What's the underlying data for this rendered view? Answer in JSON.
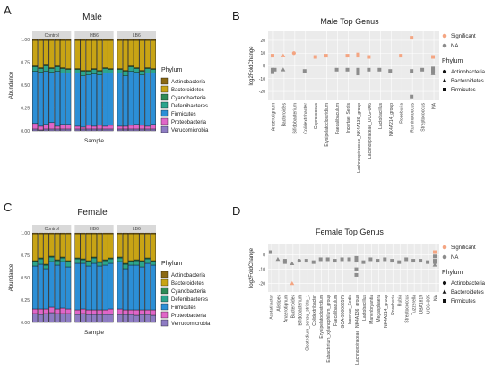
{
  "colors": {
    "Actinobacteria": "#8B6914",
    "Bacteroidetes": "#C8A415",
    "Cyanobacteria": "#2E8B57",
    "Deferribacteres": "#2CA58D",
    "Firmicutes": "#2C8FD6",
    "Proteobacteria": "#E066C8",
    "Verrucomicrobia": "#8E7CC3",
    "significant": "#F4A582",
    "na": "#8C8C8C"
  },
  "chart_data": [
    {
      "id": "A",
      "type": "bar",
      "title": "Male",
      "xlabel": "Sample",
      "ylabel": "Abundance",
      "ylim": [
        0,
        1
      ],
      "yticks": [
        "0.00",
        "0.25",
        "0.50",
        "0.75",
        "1.00"
      ],
      "facets": [
        "Control",
        "HB6",
        "LB6"
      ],
      "bars_per_facet": 7,
      "legend_title": "Phylum",
      "legend": [
        "Actinobacteria",
        "Bacteroidetes",
        "Cyanobacteria",
        "Deferribacteres",
        "Firmicutes",
        "Proteobacteria",
        "Verucomicrobia"
      ],
      "series": [
        {
          "name": "Actinobacteria",
          "values": [
            0.01,
            0.01,
            0.01,
            0.01,
            0.01,
            0.01,
            0.01,
            0.01,
            0.01,
            0.01,
            0.01,
            0.01,
            0.01,
            0.01,
            0.01,
            0.01,
            0.01,
            0.01,
            0.01,
            0.01,
            0.01
          ]
        },
        {
          "name": "Bacteroidetes",
          "values": [
            0.28,
            0.3,
            0.27,
            0.3,
            0.28,
            0.3,
            0.31,
            0.31,
            0.33,
            0.33,
            0.31,
            0.33,
            0.3,
            0.31,
            0.31,
            0.33,
            0.28,
            0.3,
            0.33,
            0.3,
            0.31
          ]
        },
        {
          "name": "Cyanobacteria",
          "values": [
            0.01,
            0.01,
            0.01,
            0.01,
            0.01,
            0.01,
            0.01,
            0.01,
            0.01,
            0.01,
            0.01,
            0.01,
            0.01,
            0.01,
            0.01,
            0.01,
            0.01,
            0.01,
            0.01,
            0.01,
            0.01
          ]
        },
        {
          "name": "Deferribacteres",
          "values": [
            0.05,
            0.04,
            0.06,
            0.04,
            0.05,
            0.05,
            0.04,
            0.04,
            0.05,
            0.04,
            0.05,
            0.04,
            0.05,
            0.04,
            0.04,
            0.05,
            0.05,
            0.04,
            0.04,
            0.05,
            0.04
          ]
        },
        {
          "name": "Firmicutes",
          "values": [
            0.57,
            0.59,
            0.58,
            0.55,
            0.6,
            0.56,
            0.56,
            0.58,
            0.56,
            0.55,
            0.57,
            0.55,
            0.58,
            0.57,
            0.58,
            0.55,
            0.59,
            0.57,
            0.55,
            0.58,
            0.56
          ]
        },
        {
          "name": "Proteobacteria",
          "values": [
            0.06,
            0.04,
            0.05,
            0.07,
            0.03,
            0.05,
            0.05,
            0.03,
            0.02,
            0.04,
            0.03,
            0.04,
            0.03,
            0.04,
            0.03,
            0.03,
            0.04,
            0.05,
            0.04,
            0.03,
            0.05
          ]
        },
        {
          "name": "Verucomicrobia",
          "values": [
            0.02,
            0.01,
            0.02,
            0.02,
            0.02,
            0.02,
            0.02,
            0.02,
            0.02,
            0.02,
            0.02,
            0.02,
            0.02,
            0.02,
            0.02,
            0.02,
            0.02,
            0.02,
            0.02,
            0.02,
            0.02
          ]
        }
      ]
    },
    {
      "id": "C",
      "type": "bar",
      "title": "Female",
      "xlabel": "Sample",
      "ylabel": "Abundance",
      "ylim": [
        0,
        1
      ],
      "yticks": [
        "0.00",
        "0.25",
        "0.50",
        "0.75",
        "1.00"
      ],
      "facets": [
        "Control",
        "HB6",
        "LB6"
      ],
      "bars_per_facet": 7,
      "legend_title": "Phylum",
      "legend": [
        "Actinobacteria",
        "Bacteroidetes",
        "Cyanobacteria",
        "Deferribacteres",
        "Firmicutes",
        "Proteobacteria",
        "Verrucomicrobia"
      ],
      "series": [
        {
          "name": "Actinobacteria",
          "values": [
            0.01,
            0.01,
            0.01,
            0.01,
            0.01,
            0.01,
            0.01,
            0.01,
            0.01,
            0.01,
            0.01,
            0.01,
            0.01,
            0.01,
            0.01,
            0.01,
            0.01,
            0.01,
            0.01,
            0.01,
            0.01
          ]
        },
        {
          "name": "Bacteroidetes",
          "values": [
            0.3,
            0.27,
            0.34,
            0.25,
            0.29,
            0.26,
            0.3,
            0.27,
            0.28,
            0.3,
            0.26,
            0.31,
            0.29,
            0.27,
            0.26,
            0.33,
            0.3,
            0.29,
            0.3,
            0.27,
            0.3
          ]
        },
        {
          "name": "Cyanobacteria",
          "values": [
            0.01,
            0.01,
            0.01,
            0.01,
            0.01,
            0.01,
            0.01,
            0.01,
            0.01,
            0.01,
            0.01,
            0.01,
            0.01,
            0.01,
            0.01,
            0.01,
            0.01,
            0.01,
            0.01,
            0.01,
            0.01
          ]
        },
        {
          "name": "Deferribacteres",
          "values": [
            0.05,
            0.06,
            0.04,
            0.05,
            0.05,
            0.04,
            0.06,
            0.05,
            0.04,
            0.05,
            0.06,
            0.04,
            0.05,
            0.05,
            0.04,
            0.05,
            0.04,
            0.05,
            0.06,
            0.05,
            0.04
          ]
        },
        {
          "name": "Firmicutes",
          "values": [
            0.48,
            0.5,
            0.45,
            0.51,
            0.49,
            0.52,
            0.47,
            0.52,
            0.51,
            0.49,
            0.52,
            0.49,
            0.5,
            0.51,
            0.53,
            0.46,
            0.5,
            0.5,
            0.48,
            0.52,
            0.5
          ]
        },
        {
          "name": "Proteobacteria",
          "values": [
            0.05,
            0.06,
            0.05,
            0.06,
            0.05,
            0.06,
            0.05,
            0.05,
            0.05,
            0.05,
            0.05,
            0.05,
            0.05,
            0.06,
            0.06,
            0.05,
            0.05,
            0.06,
            0.05,
            0.05,
            0.06
          ]
        },
        {
          "name": "Verrucomicrobia",
          "values": [
            0.1,
            0.09,
            0.1,
            0.11,
            0.1,
            0.1,
            0.1,
            0.09,
            0.1,
            0.09,
            0.09,
            0.09,
            0.09,
            0.09,
            0.09,
            0.09,
            0.09,
            0.08,
            0.09,
            0.09,
            0.08
          ]
        }
      ]
    },
    {
      "id": "B",
      "type": "scatter",
      "title": "Male Top Genus",
      "ylabel": "log2FoldChange",
      "ylim": [
        -27,
        27
      ],
      "yticks": [
        20,
        10,
        0,
        -10,
        -20
      ],
      "legend_title": "Phylum",
      "color_legend": [
        "Significant",
        "NA"
      ],
      "shape_legend": [
        "Actinobacteria",
        "Bacteroidetes",
        "Firmicutes"
      ],
      "categories": [
        "Anaerotignum",
        "Bacteroides",
        "Bifidobacterium",
        "Colidextribacter",
        "Coprococcus",
        "Erysipelatoclostridium",
        "Faecalibaculum",
        "Incertae_Sedis",
        "Lachnospiraceae_NK4A136_group",
        "Lachnospiraceae_UCG-006",
        "Lactobacillus",
        "NK4A214_group",
        "Roseburia",
        "Ruminococcus",
        "Streptococcus",
        "NA"
      ],
      "points": [
        {
          "x": 0,
          "y": 8,
          "sig": true,
          "phylum": "Firmicutes"
        },
        {
          "x": 0,
          "y": -3,
          "sig": false,
          "phylum": "Firmicutes"
        },
        {
          "x": 0,
          "y": -5,
          "sig": false,
          "phylum": "Firmicutes"
        },
        {
          "x": 0,
          "y": -3,
          "sig": false,
          "phylum": "Firmicutes"
        },
        {
          "x": 1,
          "y": 8,
          "sig": true,
          "phylum": "Bacteroidetes"
        },
        {
          "x": 1,
          "y": -3,
          "sig": false,
          "phylum": "Bacteroidetes"
        },
        {
          "x": 2,
          "y": 10,
          "sig": true,
          "phylum": "Actinobacteria"
        },
        {
          "x": 3,
          "y": -4,
          "sig": false,
          "phylum": "Firmicutes"
        },
        {
          "x": 4,
          "y": 7,
          "sig": true,
          "phylum": "Firmicutes"
        },
        {
          "x": 5,
          "y": 8,
          "sig": true,
          "phylum": "Firmicutes"
        },
        {
          "x": 6,
          "y": -3,
          "sig": false,
          "phylum": "Firmicutes"
        },
        {
          "x": 7,
          "y": 8,
          "sig": true,
          "phylum": "Firmicutes"
        },
        {
          "x": 7,
          "y": -3,
          "sig": false,
          "phylum": "Firmicutes"
        },
        {
          "x": 8,
          "y": 9,
          "sig": true,
          "phylum": "Firmicutes"
        },
        {
          "x": 8,
          "y": 8,
          "sig": true,
          "phylum": "Firmicutes"
        },
        {
          "x": 8,
          "y": -3,
          "sig": false,
          "phylum": "Firmicutes"
        },
        {
          "x": 8,
          "y": -6,
          "sig": false,
          "phylum": "Firmicutes"
        },
        {
          "x": 8,
          "y": -4,
          "sig": false,
          "phylum": "Firmicutes"
        },
        {
          "x": 9,
          "y": 7,
          "sig": true,
          "phylum": "Firmicutes"
        },
        {
          "x": 9,
          "y": -3,
          "sig": false,
          "phylum": "Firmicutes"
        },
        {
          "x": 10,
          "y": -3,
          "sig": false,
          "phylum": "Firmicutes"
        },
        {
          "x": 11,
          "y": -4,
          "sig": false,
          "phylum": "Firmicutes"
        },
        {
          "x": 12,
          "y": 8,
          "sig": true,
          "phylum": "Firmicutes"
        },
        {
          "x": 13,
          "y": 22,
          "sig": true,
          "phylum": "Firmicutes"
        },
        {
          "x": 13,
          "y": -4,
          "sig": false,
          "phylum": "Firmicutes"
        },
        {
          "x": 13,
          "y": -24,
          "sig": false,
          "phylum": "Firmicutes"
        },
        {
          "x": 14,
          "y": -3,
          "sig": false,
          "phylum": "Firmicutes"
        },
        {
          "x": 15,
          "y": 7,
          "sig": true,
          "phylum": "Firmicutes"
        },
        {
          "x": 15,
          "y": -2,
          "sig": false,
          "phylum": "Firmicutes"
        },
        {
          "x": 15,
          "y": -4,
          "sig": false,
          "phylum": "Firmicutes"
        },
        {
          "x": 15,
          "y": -6,
          "sig": false,
          "phylum": "Bacteroidetes"
        },
        {
          "x": 15,
          "y": -3,
          "sig": false,
          "phylum": "Firmicutes"
        },
        {
          "x": 15,
          "y": -5,
          "sig": false,
          "phylum": "Firmicutes"
        }
      ]
    },
    {
      "id": "D",
      "type": "scatter",
      "title": "Female Top Genus",
      "ylabel": "log2FoldChange",
      "ylim": [
        -26,
        8
      ],
      "yticks": [
        0,
        -10,
        -20
      ],
      "legend_title": "Phylum",
      "color_legend": [
        "Significant",
        "NA"
      ],
      "shape_legend": [
        "Actinobacteria",
        "Bacteroidetes",
        "Firmicutes"
      ],
      "categories": [
        "Acetatifactor",
        "Alistipes",
        "Anaerotignum",
        "Bacteroides",
        "Bifidobacterium",
        "Clostridium_sensu_stricto_1",
        "Colidextribacter",
        "Erysipelatoclostridium",
        "Eubacterium_xylanophilum_group",
        "Faecalibaculum",
        "GCA-900066575",
        "Incertae_Sedis",
        "Lachnospiraceae_NK4A136_group",
        "Lactobacillus",
        "Marvinbryantia",
        "Megasphaera",
        "NK4A214_group",
        "Roseburia",
        "Rubia",
        "Streptococcus",
        "Tuzzerella",
        "UBA1819",
        "UCG-005",
        "NA"
      ],
      "points": [
        {
          "x": 0,
          "y": 2,
          "sig": false,
          "phylum": "Firmicutes"
        },
        {
          "x": 1,
          "y": -3,
          "sig": false,
          "phylum": "Bacteroidetes"
        },
        {
          "x": 2,
          "y": -4,
          "sig": false,
          "phylum": "Firmicutes"
        },
        {
          "x": 2,
          "y": -5,
          "sig": false,
          "phylum": "Firmicutes"
        },
        {
          "x": 3,
          "y": -6,
          "sig": false,
          "phylum": "Bacteroidetes"
        },
        {
          "x": 3,
          "y": -20,
          "sig": true,
          "phylum": "Bacteroidetes"
        },
        {
          "x": 4,
          "y": -4,
          "sig": false,
          "phylum": "Actinobacteria"
        },
        {
          "x": 5,
          "y": -4,
          "sig": false,
          "phylum": "Firmicutes"
        },
        {
          "x": 6,
          "y": -5,
          "sig": false,
          "phylum": "Firmicutes"
        },
        {
          "x": 7,
          "y": -3,
          "sig": false,
          "phylum": "Firmicutes"
        },
        {
          "x": 8,
          "y": -3,
          "sig": false,
          "phylum": "Firmicutes"
        },
        {
          "x": 9,
          "y": -4,
          "sig": false,
          "phylum": "Firmicutes"
        },
        {
          "x": 10,
          "y": -3,
          "sig": false,
          "phylum": "Firmicutes"
        },
        {
          "x": 11,
          "y": -3,
          "sig": false,
          "phylum": "Firmicutes"
        },
        {
          "x": 12,
          "y": -2,
          "sig": false,
          "phylum": "Firmicutes"
        },
        {
          "x": 12,
          "y": -4,
          "sig": false,
          "phylum": "Firmicutes"
        },
        {
          "x": 12,
          "y": -10,
          "sig": false,
          "phylum": "Firmicutes"
        },
        {
          "x": 12,
          "y": -14,
          "sig": false,
          "phylum": "Firmicutes"
        },
        {
          "x": 13,
          "y": -5,
          "sig": false,
          "phylum": "Firmicutes"
        },
        {
          "x": 14,
          "y": -3,
          "sig": false,
          "phylum": "Firmicutes"
        },
        {
          "x": 15,
          "y": -4,
          "sig": false,
          "phylum": "Firmicutes"
        },
        {
          "x": 16,
          "y": -3,
          "sig": false,
          "phylum": "Firmicutes"
        },
        {
          "x": 17,
          "y": -4,
          "sig": false,
          "phylum": "Firmicutes"
        },
        {
          "x": 18,
          "y": -5,
          "sig": false,
          "phylum": "Firmicutes"
        },
        {
          "x": 19,
          "y": -3,
          "sig": false,
          "phylum": "Firmicutes"
        },
        {
          "x": 20,
          "y": -4,
          "sig": false,
          "phylum": "Firmicutes"
        },
        {
          "x": 21,
          "y": -4,
          "sig": false,
          "phylum": "Firmicutes"
        },
        {
          "x": 22,
          "y": -5,
          "sig": false,
          "phylum": "Firmicutes"
        },
        {
          "x": 23,
          "y": 2,
          "sig": true,
          "phylum": "Firmicutes"
        },
        {
          "x": 23,
          "y": -1,
          "sig": false,
          "phylum": "Firmicutes"
        },
        {
          "x": 23,
          "y": -4,
          "sig": false,
          "phylum": "Firmicutes"
        },
        {
          "x": 23,
          "y": -7,
          "sig": false,
          "phylum": "Bacteroidetes"
        },
        {
          "x": 23,
          "y": -5,
          "sig": false,
          "phylum": "Firmicutes"
        }
      ]
    }
  ],
  "panel_letters": {
    "a": "A",
    "b": "B",
    "c": "C",
    "d": "D"
  }
}
